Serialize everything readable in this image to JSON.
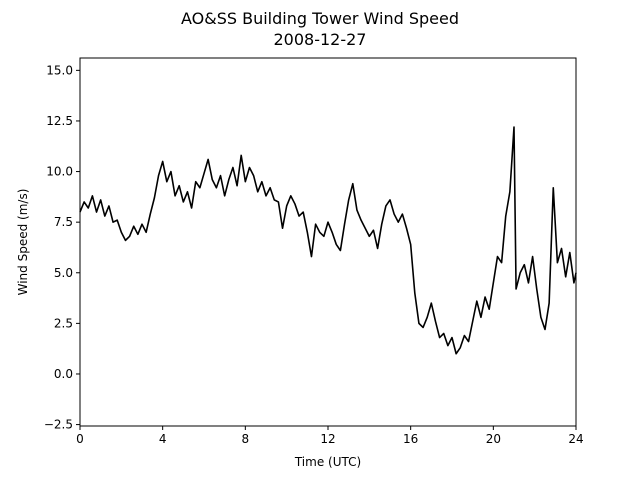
{
  "chart_data": {
    "type": "line",
    "title": "AO&SS Building Tower Wind Speed",
    "subtitle": "2008-12-27",
    "x_label": "Time (UTC)",
    "y_label": "Wind Speed (m/s)",
    "xlim": [
      0,
      24
    ],
    "xticks": [
      0,
      4,
      8,
      12,
      16,
      20,
      24
    ],
    "ylim": [
      -2.57,
      15.61
    ],
    "yticks": [
      {
        "value": -2.5,
        "label": "−2.5"
      },
      {
        "value": 0,
        "label": "0.0"
      },
      2.5,
      {
        "value": 5,
        "label": "5.0"
      },
      7.5,
      {
        "value": 10,
        "label": "10.0"
      },
      12.5,
      {
        "value": 15,
        "label": "15.0"
      }
    ],
    "series": [
      {
        "color": "#000000",
        "x": [
          0,
          0.2,
          0.4,
          0.6,
          0.8,
          1.0,
          1.2,
          1.4,
          1.6,
          1.8,
          2.0,
          2.2,
          2.4,
          2.6,
          2.8,
          3.0,
          3.2,
          3.4,
          3.6,
          3.8,
          4.0,
          4.2,
          4.4,
          4.6,
          4.8,
          5.0,
          5.2,
          5.4,
          5.6,
          5.8,
          6.0,
          6.2,
          6.4,
          6.6,
          6.8,
          7.0,
          7.2,
          7.4,
          7.6,
          7.8,
          8.0,
          8.2,
          8.4,
          8.6,
          8.8,
          9.0,
          9.2,
          9.4,
          9.6,
          9.8,
          10.0,
          10.2,
          10.4,
          10.6,
          10.8,
          11.0,
          11.2,
          11.4,
          11.6,
          11.8,
          12.0,
          12.2,
          12.4,
          12.6,
          12.8,
          13.0,
          13.2,
          13.4,
          13.6,
          13.8,
          14.0,
          14.2,
          14.4,
          14.6,
          14.8,
          15.0,
          15.2,
          15.4,
          15.6,
          15.8,
          16.0,
          16.2,
          16.4,
          16.6,
          16.8,
          17.0,
          17.2,
          17.4,
          17.6,
          17.8,
          18.0,
          18.2,
          18.4,
          18.6,
          18.8,
          19.0,
          19.2,
          19.4,
          19.6,
          19.8,
          20.0,
          20.2,
          20.4,
          20.6,
          20.8,
          21.0,
          21.1,
          21.3,
          21.5,
          21.7,
          21.9,
          22.1,
          22.3,
          22.5,
          22.7,
          22.9,
          23.1,
          23.3,
          23.5,
          23.7,
          23.9,
          24.0
        ],
        "values": [
          8.0,
          8.5,
          8.2,
          8.8,
          8.0,
          8.6,
          7.8,
          8.3,
          7.5,
          7.6,
          7.0,
          6.6,
          6.8,
          7.3,
          6.9,
          7.4,
          7.0,
          7.9,
          8.7,
          9.8,
          10.5,
          9.5,
          10.0,
          8.8,
          9.3,
          8.5,
          9.0,
          8.2,
          9.5,
          9.2,
          9.9,
          10.6,
          9.6,
          9.2,
          9.8,
          8.8,
          9.6,
          10.2,
          9.3,
          10.8,
          9.5,
          10.2,
          9.8,
          9.0,
          9.5,
          8.8,
          9.2,
          8.6,
          8.5,
          7.2,
          8.3,
          8.8,
          8.4,
          7.8,
          8.0,
          7.0,
          5.8,
          7.4,
          7.0,
          6.8,
          7.5,
          7.0,
          6.4,
          6.1,
          7.4,
          8.6,
          9.4,
          8.1,
          7.6,
          7.2,
          6.8,
          7.1,
          6.2,
          7.4,
          8.3,
          8.6,
          7.9,
          7.5,
          7.9,
          7.2,
          6.4,
          4.0,
          2.5,
          2.3,
          2.8,
          3.5,
          2.6,
          1.8,
          2.0,
          1.4,
          1.8,
          1.0,
          1.3,
          1.9,
          1.6,
          2.6,
          3.6,
          2.8,
          3.8,
          3.2,
          4.5,
          5.8,
          5.5,
          7.8,
          9.0,
          12.2,
          4.2,
          5.0,
          5.4,
          4.5,
          5.8,
          4.2,
          2.8,
          2.2,
          3.5,
          9.2,
          5.5,
          6.2,
          4.8,
          6.0,
          4.5,
          5.0
        ]
      }
    ]
  }
}
